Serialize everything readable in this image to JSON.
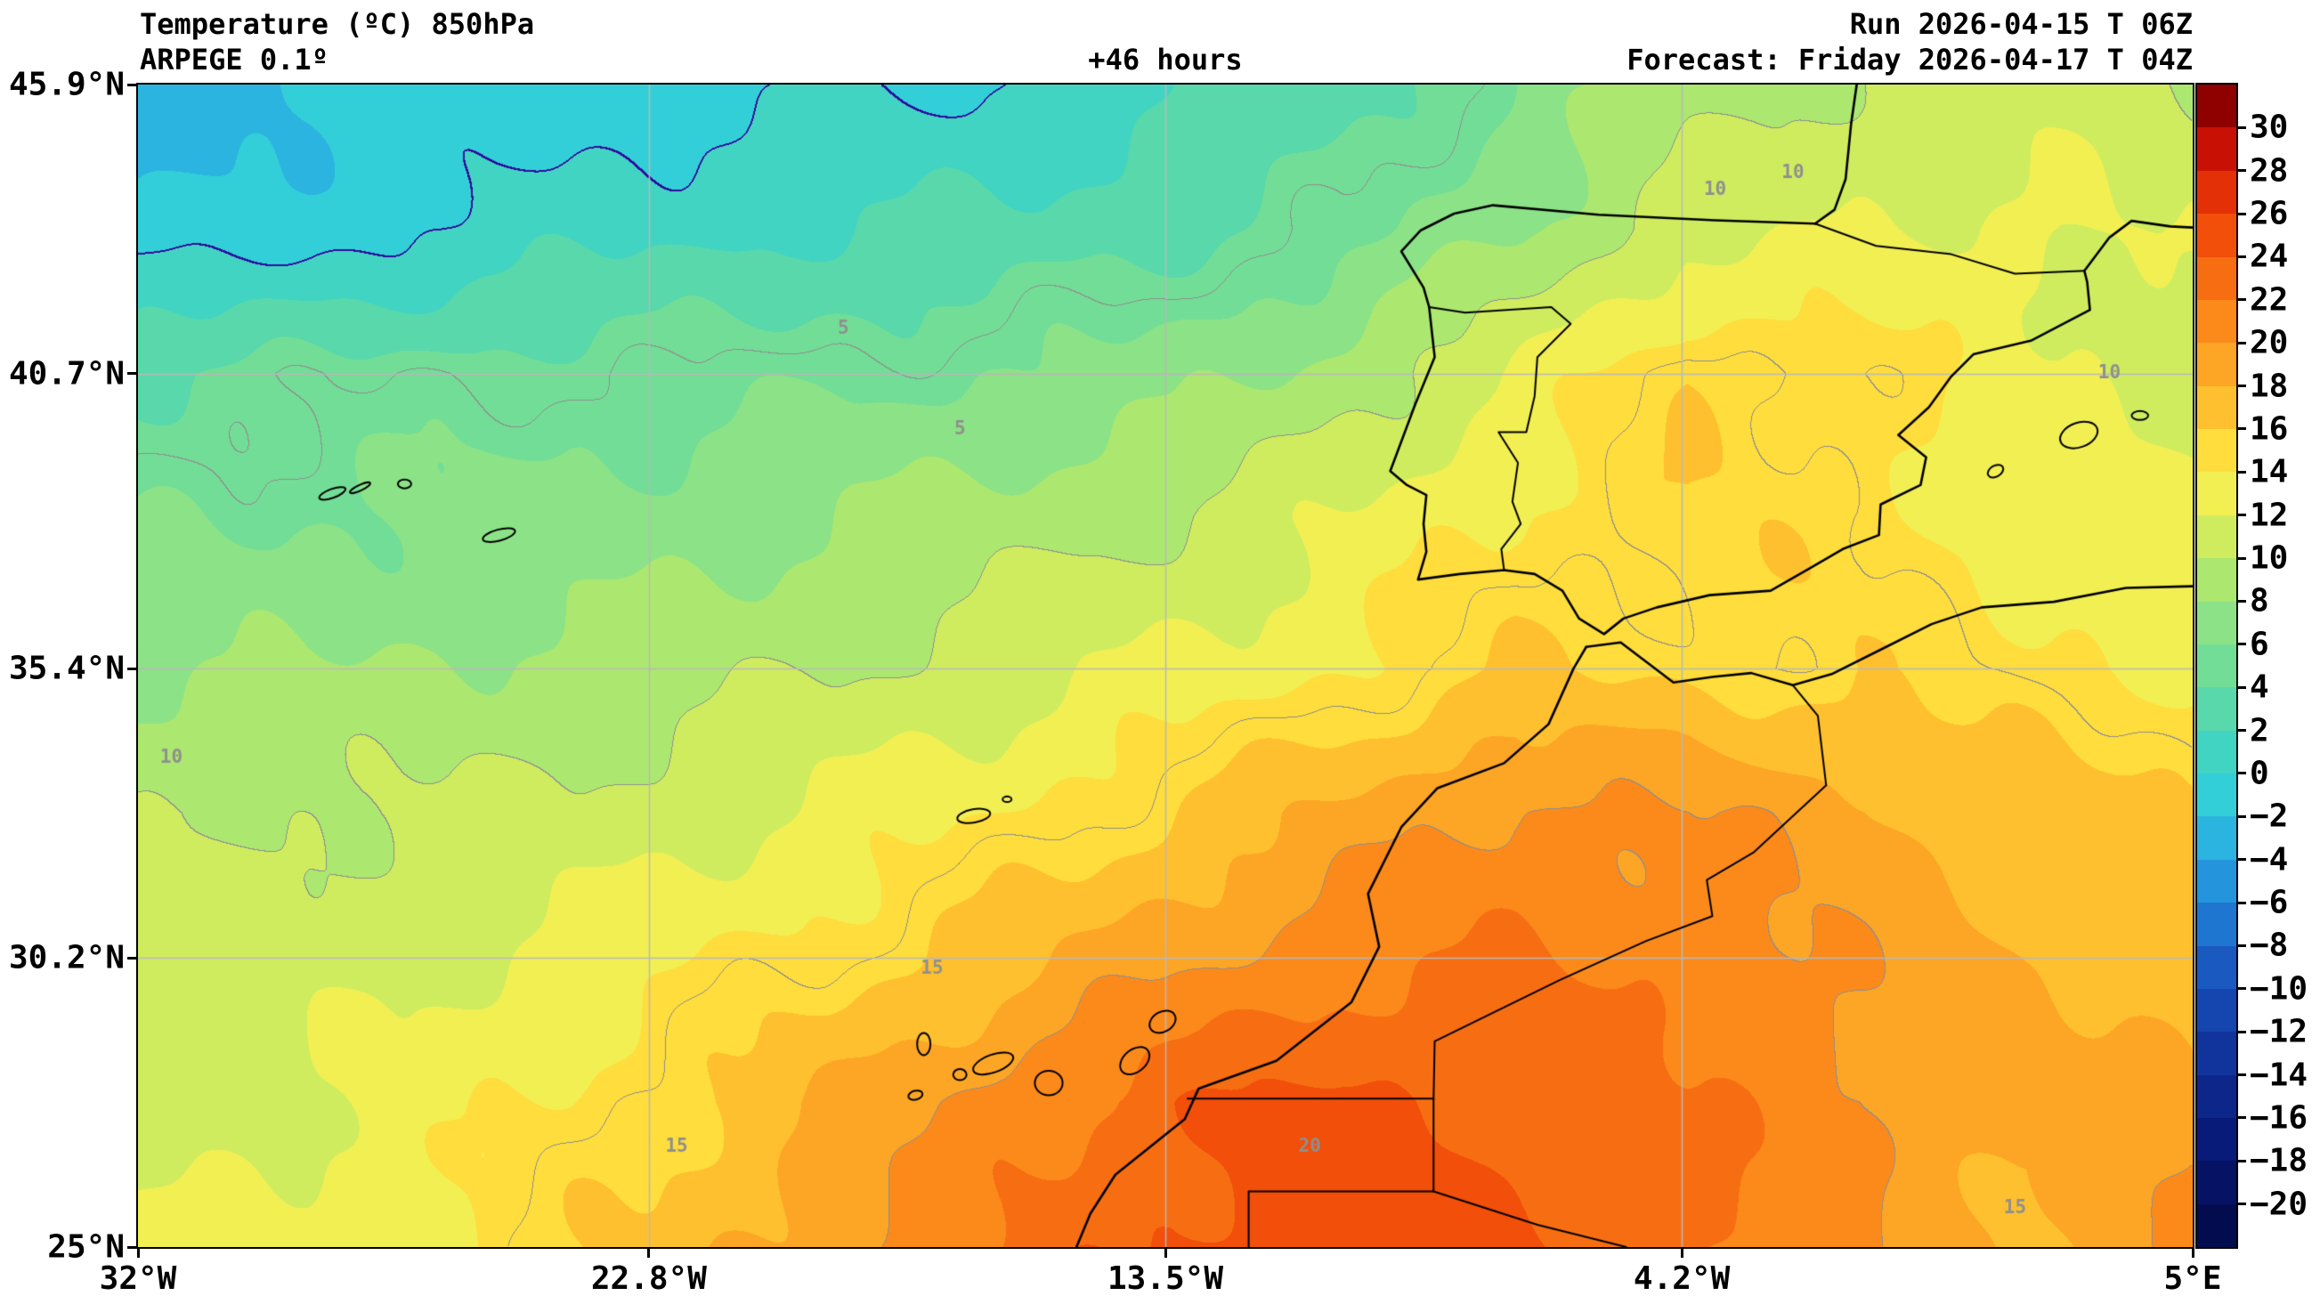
{
  "header": {
    "title_line1": "Temperature (ºC) 850hPa",
    "title_line2": "ARPEGE 0.1º",
    "center_label": "+46 hours",
    "run_label": "Run 2026-04-15 T 06Z",
    "forecast_label": "Forecast: Friday 2026-04-17 T 04Z"
  },
  "axes": {
    "x_ticks": [
      "32°W",
      "22.8°W",
      "13.5°W",
      "4.2°W",
      "5°E"
    ],
    "x_values": [
      -32,
      -22.8,
      -13.5,
      -4.2,
      5
    ],
    "y_ticks": [
      "45.9°N",
      "40.7°N",
      "35.4°N",
      "30.2°N",
      "25°N"
    ],
    "y_values": [
      45.9,
      40.7,
      35.4,
      30.2,
      25
    ],
    "lon_range": [
      -32,
      5
    ],
    "lat_range": [
      25,
      45.9
    ]
  },
  "colorbar": {
    "tick_labels": [
      "30",
      "28",
      "26",
      "24",
      "22",
      "20",
      "18",
      "16",
      "14",
      "12",
      "10",
      "8",
      "6",
      "4",
      "2",
      "0",
      "−2",
      "−4",
      "−6",
      "−8",
      "−10",
      "−12",
      "−14",
      "−16",
      "−18",
      "−20"
    ],
    "colors_top_to_bottom": [
      "#8f0000",
      "#c81104",
      "#e33006",
      "#f14f0a",
      "#f76e12",
      "#fb8a1b",
      "#fda525",
      "#fec02e",
      "#fedd3c",
      "#f2ef53",
      "#cfec5f",
      "#ace76f",
      "#8ce287",
      "#72dd96",
      "#58d8ab",
      "#41d4c2",
      "#33cfd8",
      "#2bb4e0",
      "#2495dc",
      "#1e76d0",
      "#1a59c0",
      "#1545ae",
      "#11339c",
      "#0d268a",
      "#091b78",
      "#061264",
      "#040c50"
    ]
  },
  "colors": {
    "background": "#ffffff",
    "frame": "#000000",
    "coastline": "#000000",
    "border_line": "#000000",
    "graticule": "#b9b9b9",
    "contour_gray": "#8f8f8f",
    "contour_zero": "#2e0d9e"
  },
  "chart_data": {
    "type": "heatmap",
    "variable": "Temperature",
    "level": "850hPa",
    "units": "°C",
    "model": "ARPEGE 0.1º",
    "lead_time": "+46 hours",
    "run": "2026-04-15 T 06Z",
    "valid": "Friday 2026-04-17 T 04Z",
    "lon_range": [
      -32,
      5
    ],
    "lat_range": [
      25,
      45.9
    ],
    "colorbar_min": -20,
    "colorbar_max": 30,
    "colorbar_step": 2,
    "lons": [
      -32,
      -28.9,
      -25.8,
      -22.7,
      -19.6,
      -16.5,
      -13.4,
      -10.3,
      -7.2,
      -4.1,
      -1.0,
      2.0,
      5.0
    ],
    "lats": [
      45.9,
      43.3,
      40.7,
      38.1,
      35.4,
      32.8,
      30.2,
      27.6,
      25.0
    ],
    "temps_c": [
      [
        -3,
        -2.2,
        -1.5,
        -0.8,
        -0.3,
        0,
        1.5,
        3,
        6,
        9,
        10.5,
        11,
        10.5
      ],
      [
        -1.5,
        -1,
        0.5,
        1.5,
        2,
        2.5,
        3.5,
        5,
        8,
        11,
        12,
        12.5,
        11.5
      ],
      [
        4,
        4.5,
        5,
        5,
        5.5,
        6,
        7,
        9,
        12,
        16,
        15,
        12.5,
        11
      ],
      [
        6,
        6,
        6.5,
        7,
        8,
        9,
        10,
        12,
        14.5,
        15.5,
        15,
        13.5,
        12.5
      ],
      [
        7.5,
        8,
        8.5,
        9,
        10,
        11,
        12.5,
        14,
        16,
        15.5,
        15.5,
        14.5,
        14
      ],
      [
        10,
        10,
        10.5,
        11,
        12.5,
        14,
        16,
        18.5,
        20.5,
        20,
        18.5,
        17,
        16
      ],
      [
        10.5,
        11,
        12,
        13.5,
        15,
        17,
        19.5,
        21.5,
        22,
        21.5,
        19.5,
        18,
        17.5
      ],
      [
        11,
        12,
        13.5,
        15.5,
        18,
        21,
        23.5,
        24.5,
        23.5,
        22,
        20.5,
        18.5,
        19
      ],
      [
        12,
        13,
        14.5,
        16.5,
        19.5,
        22,
        24.5,
        25.5,
        24.5,
        23,
        20,
        17.5,
        21
      ]
    ],
    "contour_levels_gray": [
      5,
      10,
      15,
      20
    ],
    "zero_contour_level": 0,
    "contour_labels": [
      {
        "text": "5",
        "lon": -19.3,
        "lat": 41.5
      },
      {
        "text": "5",
        "lon": -17.2,
        "lat": 39.7
      },
      {
        "text": "10",
        "lon": -31.4,
        "lat": 33.8
      },
      {
        "text": "10",
        "lon": -3.6,
        "lat": 44.0
      },
      {
        "text": "10",
        "lon": -2.2,
        "lat": 44.3
      },
      {
        "text": "10",
        "lon": 3.5,
        "lat": 40.7
      },
      {
        "text": "15",
        "lon": -17.7,
        "lat": 30.0
      },
      {
        "text": "15",
        "lon": -22.3,
        "lat": 26.8
      },
      {
        "text": "15",
        "lon": 1.8,
        "lat": 25.7
      },
      {
        "text": "20",
        "lon": -10.9,
        "lat": 26.8
      }
    ]
  },
  "map_shapes": {
    "coastlines": [
      [
        [
          -1.8,
          43.4
        ],
        [
          -3.6,
          43.46
        ],
        [
          -5.7,
          43.56
        ],
        [
          -7.6,
          43.73
        ],
        [
          -8.3,
          43.58
        ],
        [
          -8.9,
          43.28
        ],
        [
          -9.25,
          42.9
        ],
        [
          -8.85,
          42.25
        ],
        [
          -8.75,
          41.9
        ],
        [
          -8.65,
          41.0
        ],
        [
          -9.0,
          40.15
        ],
        [
          -9.45,
          38.95
        ],
        [
          -9.15,
          38.7
        ],
        [
          -8.8,
          38.52
        ],
        [
          -8.85,
          38.0
        ],
        [
          -8.8,
          37.5
        ],
        [
          -8.95,
          37.0
        ],
        [
          -8.2,
          37.1
        ],
        [
          -7.4,
          37.17
        ],
        [
          -6.85,
          37.1
        ],
        [
          -6.35,
          36.8
        ],
        [
          -6.05,
          36.3
        ],
        [
          -5.6,
          36.02
        ],
        [
          -5.25,
          36.3
        ],
        [
          -4.65,
          36.5
        ],
        [
          -3.7,
          36.72
        ],
        [
          -2.6,
          36.8
        ],
        [
          -1.9,
          37.2
        ],
        [
          -1.3,
          37.55
        ],
        [
          -0.65,
          37.8
        ],
        [
          -0.62,
          38.35
        ],
        [
          0.1,
          38.7
        ],
        [
          0.2,
          39.2
        ],
        [
          -0.3,
          39.6
        ],
        [
          0.25,
          40.1
        ],
        [
          0.65,
          40.65
        ],
        [
          1.05,
          41.05
        ],
        [
          2.1,
          41.3
        ],
        [
          3.15,
          41.85
        ],
        [
          3.1,
          42.35
        ],
        [
          3.05,
          42.55
        ],
        [
          3.5,
          43.15
        ],
        [
          3.9,
          43.45
        ],
        [
          4.6,
          43.35
        ],
        [
          5.0,
          43.33
        ]
      ],
      [
        [
          -1.8,
          43.4
        ],
        [
          -1.45,
          43.65
        ],
        [
          -1.25,
          44.2
        ],
        [
          -1.15,
          45.2
        ],
        [
          -1.05,
          45.9
        ]
      ],
      [
        [
          -5.92,
          35.79
        ],
        [
          -5.3,
          35.87
        ],
        [
          -4.35,
          35.15
        ],
        [
          -3.65,
          35.25
        ],
        [
          -2.95,
          35.32
        ],
        [
          -2.2,
          35.1
        ],
        [
          -1.5,
          35.3
        ],
        [
          -0.6,
          35.75
        ],
        [
          0.3,
          36.2
        ],
        [
          1.2,
          36.5
        ],
        [
          2.5,
          36.6
        ],
        [
          3.8,
          36.85
        ],
        [
          5.0,
          36.88
        ]
      ],
      [
        [
          -5.92,
          35.79
        ],
        [
          -6.15,
          35.4
        ],
        [
          -6.6,
          34.4
        ],
        [
          -7.4,
          33.7
        ],
        [
          -8.6,
          33.25
        ],
        [
          -9.25,
          32.55
        ],
        [
          -9.85,
          31.35
        ],
        [
          -9.65,
          30.4
        ],
        [
          -10.15,
          29.4
        ],
        [
          -11.5,
          28.35
        ],
        [
          -12.9,
          27.85
        ],
        [
          -13.15,
          27.3
        ],
        [
          -14.4,
          26.3
        ],
        [
          -14.85,
          25.6
        ],
        [
          -15.1,
          25.0
        ]
      ]
    ],
    "borders": [
      [
        [
          -1.8,
          43.4
        ],
        [
          -0.7,
          43.0
        ],
        [
          0.65,
          42.85
        ],
        [
          1.8,
          42.5
        ],
        [
          3.05,
          42.55
        ]
      ],
      [
        [
          -8.75,
          41.9
        ],
        [
          -8.1,
          41.8
        ],
        [
          -6.55,
          41.9
        ],
        [
          -6.2,
          41.6
        ],
        [
          -6.8,
          41.0
        ],
        [
          -6.85,
          40.3
        ],
        [
          -7.0,
          39.65
        ],
        [
          -7.5,
          39.65
        ],
        [
          -7.15,
          39.1
        ],
        [
          -7.25,
          38.4
        ],
        [
          -7.1,
          38.0
        ],
        [
          -7.45,
          37.55
        ],
        [
          -7.4,
          37.17
        ]
      ],
      [
        [
          -2.2,
          35.1
        ],
        [
          -1.75,
          34.55
        ],
        [
          -1.6,
          33.3
        ],
        [
          -2.9,
          32.1
        ],
        [
          -3.75,
          31.6
        ],
        [
          -3.65,
          30.95
        ],
        [
          -4.85,
          30.5
        ],
        [
          -6.4,
          29.8
        ],
        [
          -8.65,
          28.7
        ],
        [
          -8.67,
          27.66
        ]
      ],
      [
        [
          -13.1,
          27.67
        ],
        [
          -8.67,
          27.67
        ],
        [
          -8.67,
          26.0
        ],
        [
          -12.0,
          26.0
        ],
        [
          -12.0,
          25.0
        ]
      ],
      [
        [
          -8.67,
          26.0
        ],
        [
          -6.8,
          25.4
        ],
        [
          -5.2,
          25.0
        ]
      ]
    ],
    "islands": [
      {
        "name": "lanzarote",
        "lon": -13.55,
        "lat": 29.05,
        "rx": 0.25,
        "ry": 0.18,
        "rot": -30
      },
      {
        "name": "fuerteventura",
        "lon": -14.05,
        "lat": 28.35,
        "rx": 0.3,
        "ry": 0.2,
        "rot": -40
      },
      {
        "name": "gran-canaria",
        "lon": -15.6,
        "lat": 27.95,
        "rx": 0.25,
        "ry": 0.22,
        "rot": 0
      },
      {
        "name": "tenerife",
        "lon": -16.6,
        "lat": 28.3,
        "rx": 0.38,
        "ry": 0.16,
        "rot": -20
      },
      {
        "name": "la-gomera",
        "lon": -17.2,
        "lat": 28.1,
        "rx": 0.12,
        "ry": 0.1,
        "rot": 0
      },
      {
        "name": "la-palma",
        "lon": -17.85,
        "lat": 28.65,
        "rx": 0.12,
        "ry": 0.2,
        "rot": 0
      },
      {
        "name": "el-hierro",
        "lon": -18.0,
        "lat": 27.73,
        "rx": 0.13,
        "ry": 0.08,
        "rot": -15
      },
      {
        "name": "madeira",
        "lon": -16.95,
        "lat": 32.75,
        "rx": 0.3,
        "ry": 0.12,
        "rot": -10
      },
      {
        "name": "porto-santo",
        "lon": -16.35,
        "lat": 33.05,
        "rx": 0.08,
        "ry": 0.05,
        "rot": 0
      },
      {
        "name": "sao-miguel",
        "lon": -25.5,
        "lat": 37.8,
        "rx": 0.3,
        "ry": 0.1,
        "rot": -15
      },
      {
        "name": "terceira",
        "lon": -27.2,
        "lat": 38.72,
        "rx": 0.12,
        "ry": 0.08,
        "rot": 0
      },
      {
        "name": "sao-jorge",
        "lon": -28.0,
        "lat": 38.65,
        "rx": 0.2,
        "ry": 0.05,
        "rot": -25
      },
      {
        "name": "faial-pico",
        "lon": -28.5,
        "lat": 38.55,
        "rx": 0.25,
        "ry": 0.08,
        "rot": -20
      },
      {
        "name": "ibiza",
        "lon": 1.45,
        "lat": 38.95,
        "rx": 0.15,
        "ry": 0.1,
        "rot": -30
      },
      {
        "name": "mallorca",
        "lon": 2.95,
        "lat": 39.6,
        "rx": 0.35,
        "ry": 0.22,
        "rot": -20
      },
      {
        "name": "menorca",
        "lon": 4.05,
        "lat": 39.95,
        "rx": 0.15,
        "ry": 0.08,
        "rot": 0
      }
    ]
  }
}
